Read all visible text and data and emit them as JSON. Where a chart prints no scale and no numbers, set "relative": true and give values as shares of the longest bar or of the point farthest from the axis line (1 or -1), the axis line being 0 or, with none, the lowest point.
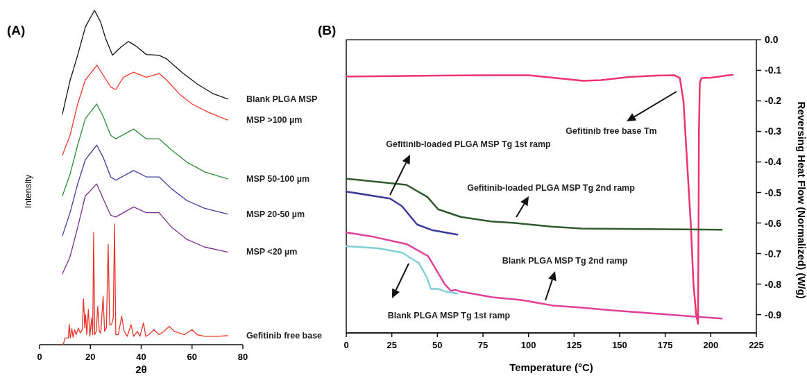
{
  "chart_data": [
    {
      "type": "line",
      "title": "(A)",
      "xlabel": "2θ",
      "ylabel": "Intensity",
      "relative": true,
      "xlim": [
        0,
        80
      ],
      "xticks": [
        0,
        20,
        40,
        60,
        80
      ],
      "series": [
        {
          "name": "Blank PLGA MSP",
          "color": "#111111",
          "x": [
            9,
            12,
            15,
            18,
            21.6,
            24,
            26,
            28.7,
            32,
            35,
            38,
            42,
            47,
            50,
            56,
            62,
            68,
            74
          ],
          "values": [
            0.69,
            0.79,
            0.866,
            0.95,
            1.0,
            0.966,
            0.916,
            0.866,
            0.89,
            0.907,
            0.893,
            0.868,
            0.866,
            0.855,
            0.815,
            0.78,
            0.752,
            0.735
          ]
        },
        {
          "name": "MSP >100 µm",
          "color": "#ee3b2c",
          "x": [
            9,
            12,
            15,
            18,
            22.6,
            25,
            28,
            30,
            33,
            37,
            42,
            47,
            50,
            55,
            60,
            66,
            74
          ],
          "values": [
            0.567,
            0.626,
            0.72,
            0.792,
            0.836,
            0.807,
            0.771,
            0.763,
            0.8,
            0.815,
            0.8,
            0.811,
            0.792,
            0.75,
            0.72,
            0.697,
            0.672
          ]
        },
        {
          "name": "MSP 50-100 µm",
          "color": "#2e8b3a",
          "x": [
            9,
            12,
            15,
            18,
            22.5,
            25,
            28,
            30,
            37,
            42,
            47,
            52,
            58,
            65,
            74
          ],
          "values": [
            0.445,
            0.51,
            0.597,
            0.676,
            0.72,
            0.683,
            0.626,
            0.616,
            0.645,
            0.616,
            0.616,
            0.582,
            0.546,
            0.517,
            0.496
          ]
        },
        {
          "name": "MSP 20-50 µm",
          "color": "#3b3b9e",
          "x": [
            9,
            12,
            15,
            18,
            22.5,
            25,
            28,
            30,
            37,
            42,
            47,
            52,
            58,
            65,
            74
          ],
          "values": [
            0.326,
            0.395,
            0.481,
            0.553,
            0.597,
            0.561,
            0.502,
            0.492,
            0.521,
            0.502,
            0.502,
            0.466,
            0.431,
            0.408,
            0.391
          ]
        },
        {
          "name": "MSP <20 µm",
          "color": "#7b2d8e",
          "x": [
            9,
            12,
            15,
            18,
            22.5,
            25,
            28,
            30,
            37,
            42,
            47,
            52,
            58,
            65,
            74
          ],
          "values": [
            0.212,
            0.263,
            0.351,
            0.445,
            0.481,
            0.437,
            0.387,
            0.382,
            0.412,
            0.395,
            0.395,
            0.351,
            0.315,
            0.292,
            0.277
          ]
        },
        {
          "name": "Gefitinib free base",
          "color": "#e8352a",
          "x": [
            9,
            9.5,
            10,
            11.3,
            11.7,
            12.1,
            12.7,
            13.2,
            13.8,
            14.4,
            15.3,
            16,
            16.8,
            17.3,
            17.8,
            18.1,
            18.6,
            19.2,
            19.8,
            20.5,
            20.9,
            21.3,
            21.7,
            22.3,
            22.9,
            23.5,
            24.1,
            25,
            25.6,
            26.3,
            27,
            27.6,
            28.3,
            29,
            29.5,
            30,
            31,
            32.3,
            33.3,
            34.5,
            36,
            37,
            38.5,
            39.5,
            40.9,
            41.8,
            43,
            45,
            47,
            49,
            51,
            53,
            55,
            57,
            60,
            62,
            65,
            70,
            74
          ],
          "values": [
            0,
            0.005,
            0.02,
            0.02,
            0.061,
            0.02,
            0.048,
            0.022,
            0.045,
            0.03,
            0.05,
            0.035,
            0.045,
            0.137,
            0.05,
            0.09,
            0.03,
            0.105,
            0.025,
            0.08,
            0.03,
            0.336,
            0.03,
            0.04,
            0.115,
            0.04,
            0.035,
            0.145,
            0.04,
            0.05,
            0.3,
            0.06,
            0.06,
            0.08,
            0.361,
            0.03,
            0.03,
            0.085,
            0.04,
            0.025,
            0.06,
            0.025,
            0.04,
            0.025,
            0.065,
            0.025,
            0.03,
            0.045,
            0.03,
            0.04,
            0.055,
            0.04,
            0.035,
            0.03,
            0.045,
            0.03,
            0.025,
            0.025,
            0.027
          ]
        }
      ]
    },
    {
      "type": "line",
      "title": "(B)",
      "xlabel": "Temperature (°C)",
      "ylabel": "Reversing Heat Flow (Normalized) (W/g)",
      "xlim": [
        0,
        225
      ],
      "xticks": [
        0,
        25,
        50,
        75,
        100,
        125,
        150,
        175,
        200,
        225
      ],
      "ylim": [
        -0.96,
        0
      ],
      "yticks": [
        {
          "value": 0,
          "label": "0.0"
        },
        -0.1,
        -0.2,
        -0.3,
        -0.4,
        -0.5,
        -0.6,
        -0.7,
        -0.8,
        -0.9
      ],
      "series": [
        {
          "color": "#f0336b",
          "x": [
            0,
            25,
            50,
            75,
            100,
            115,
            130,
            140,
            155,
            170,
            180,
            183,
            185,
            187,
            189,
            190.5,
            192,
            193,
            193.3,
            193.5,
            194,
            195,
            200,
            205,
            208,
            212
          ],
          "values": [
            -0.12,
            -0.119,
            -0.117,
            -0.116,
            -0.116,
            -0.125,
            -0.134,
            -0.132,
            -0.122,
            -0.117,
            -0.116,
            -0.125,
            -0.2,
            -0.4,
            -0.6,
            -0.8,
            -0.9,
            -0.93,
            -0.6,
            -0.3,
            -0.14,
            -0.125,
            -0.124,
            -0.12,
            -0.117,
            -0.115
          ]
        },
        {
          "color": "#2f5a2e",
          "x": [
            0,
            33,
            44.6,
            50.4,
            62.8,
            79.3,
            92.6,
            112.5,
            129,
            162,
            206
          ],
          "values": [
            -0.455,
            -0.475,
            -0.515,
            -0.555,
            -0.58,
            -0.595,
            -0.6,
            -0.612,
            -0.618,
            -0.62,
            -0.622
          ]
        },
        {
          "color": "#3a3a9c",
          "x": [
            0,
            24,
            30.6,
            34.7,
            38.9,
            47,
            61
          ],
          "values": [
            -0.497,
            -0.52,
            -0.545,
            -0.575,
            -0.605,
            -0.623,
            -0.638
          ]
        },
        {
          "color": "#e0409a",
          "x": [
            0,
            14,
            33.5,
            45,
            50,
            54,
            57.4,
            59.9,
            63,
            80,
            96,
            113,
            129,
            146,
            179,
            206
          ],
          "values": [
            -0.631,
            -0.644,
            -0.67,
            -0.709,
            -0.76,
            -0.8,
            -0.822,
            -0.819,
            -0.825,
            -0.843,
            -0.852,
            -0.87,
            -0.877,
            -0.886,
            -0.901,
            -0.913
          ]
        },
        {
          "color": "#7fd0d8",
          "x": [
            0,
            17.5,
            30.6,
            39.8,
            44,
            46.5,
            50.6,
            54.8,
            61
          ],
          "values": [
            -0.676,
            -0.683,
            -0.697,
            -0.731,
            -0.775,
            -0.816,
            -0.816,
            -0.825,
            -0.831
          ]
        }
      ],
      "annotations": [
        "Gefitinib free base Tm",
        "Gefitinib-loaded PLGA MSP Tg 1st ramp",
        "Gefitinib-loaded PLGA MSP Tg 2nd ramp",
        "Blank PLGA MSP Tg 2nd ramp",
        "Blank PLGA MSP Tg 1st ramp"
      ]
    }
  ]
}
